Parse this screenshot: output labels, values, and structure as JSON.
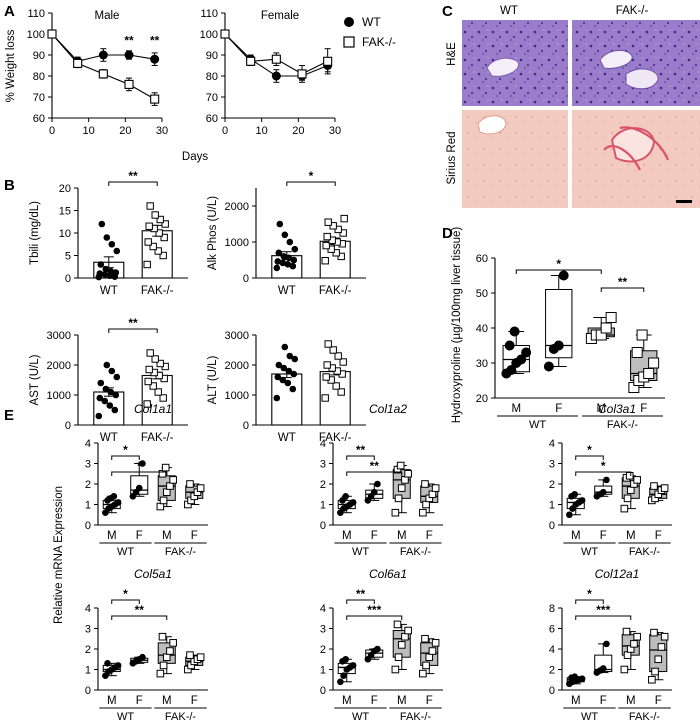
{
  "panels": [
    {
      "id": "A",
      "label": "A"
    },
    {
      "id": "B",
      "label": "B"
    },
    {
      "id": "C",
      "label": "C"
    },
    {
      "id": "D",
      "label": "D"
    },
    {
      "id": "E",
      "label": "E"
    }
  ],
  "colors": {
    "wt": "#000000",
    "fak": "#ffffff",
    "fak_box_E": "#bdbdbd",
    "he_bg": "#8d6fc0",
    "sirius_bg": "#f2c7bc"
  },
  "histology": {
    "col_labels": [
      "WT",
      "FAK-/-"
    ],
    "row_labels": [
      "H&E",
      "Sirius Red"
    ]
  },
  "chart_data": [
    {
      "panel": "A-male",
      "type": "line",
      "title": "Male",
      "x": [
        0,
        7,
        14,
        21,
        28
      ],
      "xlabel": "Days",
      "ylabel": "% Weight loss",
      "xlim": [
        0,
        30
      ],
      "ylim": [
        60,
        110
      ],
      "xticks": [
        0,
        10,
        20,
        30
      ],
      "yticks": [
        60,
        70,
        80,
        90,
        100,
        110
      ],
      "series": [
        {
          "name": "WT",
          "values": [
            100,
            87,
            90,
            90,
            88
          ],
          "err": [
            1,
            2,
            3,
            2,
            3
          ]
        },
        {
          "name": "FAK-/-",
          "values": [
            100,
            86,
            81,
            76,
            69
          ],
          "err": [
            1,
            2,
            2,
            3,
            3
          ]
        }
      ],
      "annotations": [
        {
          "x": 21,
          "y": 95,
          "text": "**"
        },
        {
          "x": 28,
          "y": 95,
          "text": "**"
        }
      ]
    },
    {
      "panel": "A-female",
      "type": "line",
      "title": "Female",
      "x": [
        0,
        7,
        14,
        21,
        28
      ],
      "xlabel": "Days",
      "ylabel": "",
      "xlim": [
        0,
        30
      ],
      "ylim": [
        60,
        110
      ],
      "xticks": [
        0,
        10,
        20,
        30
      ],
      "yticks": [
        60,
        70,
        80,
        90,
        100,
        110
      ],
      "series": [
        {
          "name": "WT",
          "values": [
            100,
            88,
            80,
            80,
            85
          ],
          "err": [
            1,
            2,
            3,
            2,
            3
          ]
        },
        {
          "name": "FAK-/-",
          "values": [
            100,
            87,
            88,
            81,
            87
          ],
          "err": [
            1,
            2,
            3,
            4,
            6
          ]
        }
      ]
    },
    {
      "panel": "B-tbili",
      "type": "bar",
      "ylabel": "Tbili (mg/dL)",
      "ylim": [
        0,
        20
      ],
      "yticks": [
        0,
        5,
        10,
        15,
        20
      ],
      "categories": [
        "WT",
        "FAK-/-"
      ],
      "values": [
        3.5,
        10.5
      ],
      "err": [
        1.2,
        1.2
      ],
      "points": [
        [
          0.2,
          0.3,
          0.5,
          0.8,
          1,
          1.2,
          1.5,
          2,
          3,
          6,
          7.5,
          9,
          12
        ],
        [
          3,
          5,
          6,
          7,
          8,
          9,
          10,
          11,
          11.5,
          12,
          13,
          14,
          16
        ]
      ],
      "sig": "**"
    },
    {
      "panel": "B-alkphos",
      "type": "bar",
      "ylabel": "Alk Phos (U/L)",
      "ylim": [
        0,
        2500
      ],
      "yticks": [
        0,
        1000,
        2000
      ],
      "categories": [
        "WT",
        "FAK-/-"
      ],
      "values": [
        620,
        1020
      ],
      "err": [
        110,
        90
      ],
      "points": [
        [
          280,
          330,
          380,
          420,
          460,
          500,
          560,
          600,
          700,
          800,
          1000,
          1200,
          1500
        ],
        [
          480,
          600,
          700,
          800,
          900,
          950,
          1000,
          1050,
          1150,
          1250,
          1350,
          1450,
          1550,
          1650
        ]
      ],
      "sig": "*"
    },
    {
      "panel": "B-ast",
      "type": "bar",
      "ylabel": "AST (U/L)",
      "ylim": [
        0,
        3000
      ],
      "yticks": [
        0,
        1000,
        2000,
        3000
      ],
      "categories": [
        "WT",
        "FAK-/-"
      ],
      "values": [
        1100,
        1650
      ],
      "err": [
        140,
        110
      ],
      "points": [
        [
          300,
          500,
          650,
          800,
          900,
          1000,
          1100,
          1200,
          1400,
          1600,
          1800,
          2000
        ],
        [
          700,
          900,
          1100,
          1300,
          1450,
          1550,
          1650,
          1750,
          1850,
          1950,
          2050,
          2200,
          2400
        ]
      ],
      "sig": "**"
    },
    {
      "panel": "B-alt",
      "type": "bar",
      "ylabel": "ALT (U/L)",
      "ylim": [
        0,
        3000
      ],
      "yticks": [
        0,
        1000,
        2000,
        3000
      ],
      "categories": [
        "WT",
        "FAK-/-"
      ],
      "values": [
        1700,
        1780
      ],
      "err": [
        120,
        110
      ],
      "points": [
        [
          900,
          1200,
          1400,
          1500,
          1600,
          1700,
          1800,
          1900,
          2000,
          2200,
          2300,
          2600
        ],
        [
          900,
          1100,
          1300,
          1500,
          1600,
          1700,
          1800,
          1900,
          2000,
          2100,
          2300,
          2500,
          2700
        ]
      ]
    },
    {
      "panel": "D",
      "type": "box",
      "ylabel": "Hydroxyproline (µg/100mg liver tissue)",
      "ylim": [
        20,
        60
      ],
      "yticks": [
        20,
        30,
        40,
        50,
        60
      ],
      "categories": [
        "M",
        "F",
        "M",
        "F"
      ],
      "groups": [
        "WT",
        "FAK-/-"
      ],
      "boxes": [
        {
          "min": 27,
          "q1": 27.5,
          "med": 31,
          "q3": 35,
          "max": 39,
          "points": [
            27,
            28,
            30,
            31,
            33,
            35,
            39
          ],
          "fill": "#ffffff",
          "marker": "circle"
        },
        {
          "min": 29,
          "q1": 31.5,
          "med": 35,
          "q3": 51,
          "max": 55,
          "points": [
            29,
            34,
            35,
            55
          ],
          "fill": "#ffffff",
          "marker": "circle"
        },
        {
          "min": 37,
          "q1": 37.5,
          "med": 38,
          "q3": 40,
          "max": 43,
          "points": [
            37,
            38,
            38,
            40,
            43
          ],
          "fill": "#bdbdbd",
          "marker": "square"
        },
        {
          "min": 23,
          "q1": 25,
          "med": 27,
          "q3": 33.5,
          "max": 38,
          "points": [
            23,
            25,
            26,
            27,
            30,
            33,
            38
          ],
          "fill": "#bdbdbd",
          "marker": "square"
        }
      ],
      "sigs": [
        {
          "from": 0,
          "to": 2,
          "text": "*"
        },
        {
          "from": 2,
          "to": 3,
          "text": "**"
        }
      ]
    },
    {
      "panel": "E-col1a1",
      "type": "box",
      "title": "Col1a1",
      "ylim": [
        0,
        4
      ],
      "yticks": [
        0,
        1,
        2,
        3,
        4
      ],
      "categories": [
        "M",
        "F",
        "M",
        "F"
      ],
      "groups": [
        "WT",
        "FAK-/-"
      ],
      "boxes": [
        {
          "min": 0.6,
          "q1": 0.8,
          "med": 1.0,
          "q3": 1.2,
          "max": 1.4,
          "points": [
            0.6,
            0.8,
            0.9,
            1.0,
            1.1,
            1.2,
            1.3,
            1.4
          ]
        },
        {
          "min": 1.4,
          "q1": 1.5,
          "med": 1.7,
          "q3": 2.4,
          "max": 3.0,
          "points": [
            1.4,
            1.6,
            1.8,
            3.0
          ]
        },
        {
          "min": 0.9,
          "q1": 1.2,
          "med": 1.9,
          "q3": 2.4,
          "max": 2.8,
          "points": [
            0.9,
            1.2,
            1.6,
            1.9,
            2.2,
            2.5,
            2.8
          ]
        },
        {
          "min": 1.0,
          "q1": 1.3,
          "med": 1.6,
          "q3": 1.9,
          "max": 2.0,
          "points": [
            1.0,
            1.2,
            1.4,
            1.6,
            1.8,
            2.0
          ]
        }
      ],
      "sigs": [
        {
          "from": 0,
          "to": 1,
          "text": "*"
        },
        {
          "from": 0,
          "to": 2,
          "text": "*"
        }
      ]
    },
    {
      "panel": "E-col1a2",
      "type": "box",
      "title": "Col1a2",
      "ylim": [
        0,
        4
      ],
      "yticks": [
        0,
        1,
        2,
        3,
        4
      ],
      "categories": [
        "M",
        "F",
        "M",
        "F"
      ],
      "groups": [
        "WT",
        "FAK-/-"
      ],
      "boxes": [
        {
          "min": 0.6,
          "q1": 0.8,
          "med": 1.0,
          "q3": 1.2,
          "max": 1.4,
          "points": [
            0.6,
            0.8,
            0.9,
            1.0,
            1.1,
            1.2,
            1.4
          ]
        },
        {
          "min": 1.2,
          "q1": 1.3,
          "med": 1.5,
          "q3": 1.7,
          "max": 2.0,
          "points": [
            1.2,
            1.4,
            1.6,
            2.0
          ]
        },
        {
          "min": 0.6,
          "q1": 1.3,
          "med": 2.2,
          "q3": 2.7,
          "max": 2.9,
          "points": [
            0.6,
            1.3,
            1.8,
            2.2,
            2.5,
            2.7,
            2.9
          ]
        },
        {
          "min": 0.6,
          "q1": 1.1,
          "med": 1.4,
          "q3": 1.9,
          "max": 2.0,
          "points": [
            0.6,
            1.0,
            1.3,
            1.5,
            1.8,
            2.0
          ]
        }
      ],
      "sigs": [
        {
          "from": 0,
          "to": 1,
          "text": "**"
        },
        {
          "from": 0,
          "to": 2,
          "text": "**"
        }
      ]
    },
    {
      "panel": "E-col3a1",
      "type": "box",
      "title": "Col3a1",
      "ylim": [
        0,
        4
      ],
      "yticks": [
        0,
        1,
        2,
        3,
        4
      ],
      "categories": [
        "M",
        "F",
        "M",
        "F"
      ],
      "groups": [
        "WT",
        "FAK-/-"
      ],
      "boxes": [
        {
          "min": 0.5,
          "q1": 0.8,
          "med": 1.1,
          "q3": 1.3,
          "max": 1.5,
          "points": [
            0.5,
            0.8,
            1.0,
            1.1,
            1.2,
            1.4,
            1.5
          ]
        },
        {
          "min": 1.4,
          "q1": 1.5,
          "med": 1.6,
          "q3": 1.9,
          "max": 2.2,
          "points": [
            1.4,
            1.5,
            1.6,
            2.2
          ]
        },
        {
          "min": 0.8,
          "q1": 1.3,
          "med": 1.9,
          "q3": 2.3,
          "max": 2.4,
          "points": [
            0.8,
            1.3,
            1.7,
            2.0,
            2.2,
            2.3,
            2.4
          ]
        },
        {
          "min": 1.2,
          "q1": 1.3,
          "med": 1.5,
          "q3": 1.8,
          "max": 1.9,
          "points": [
            1.2,
            1.3,
            1.5,
            1.7,
            1.8,
            1.9
          ]
        }
      ],
      "sigs": [
        {
          "from": 0,
          "to": 1,
          "text": "*"
        },
        {
          "from": 0,
          "to": 2,
          "text": "*"
        }
      ]
    },
    {
      "panel": "E-col5a1",
      "type": "box",
      "title": "Col5a1",
      "ylim": [
        0,
        4
      ],
      "yticks": [
        0,
        1,
        2,
        3,
        4
      ],
      "categories": [
        "M",
        "F",
        "M",
        "F"
      ],
      "groups": [
        "WT",
        "FAK-/-"
      ],
      "boxes": [
        {
          "min": 0.7,
          "q1": 0.9,
          "med": 1.0,
          "q3": 1.2,
          "max": 1.3,
          "points": [
            0.7,
            0.9,
            1.0,
            1.1,
            1.2,
            1.3
          ]
        },
        {
          "min": 1.3,
          "q1": 1.35,
          "med": 1.45,
          "q3": 1.55,
          "max": 1.6,
          "points": [
            1.3,
            1.4,
            1.5,
            1.6
          ]
        },
        {
          "min": 0.8,
          "q1": 1.3,
          "med": 1.7,
          "q3": 2.3,
          "max": 2.6,
          "points": [
            0.8,
            1.2,
            1.6,
            1.9,
            2.3,
            2.6
          ]
        },
        {
          "min": 1.0,
          "q1": 1.2,
          "med": 1.4,
          "q3": 1.6,
          "max": 1.7,
          "points": [
            1.0,
            1.2,
            1.4,
            1.5,
            1.6,
            1.7
          ]
        }
      ],
      "sigs": [
        {
          "from": 0,
          "to": 1,
          "text": "*"
        },
        {
          "from": 0,
          "to": 2,
          "text": "**"
        }
      ]
    },
    {
      "panel": "E-col6a1",
      "type": "box",
      "title": "Col6a1",
      "ylim": [
        0,
        4
      ],
      "yticks": [
        0,
        1,
        2,
        3,
        4
      ],
      "categories": [
        "M",
        "F",
        "M",
        "F"
      ],
      "groups": [
        "WT",
        "FAK-/-"
      ],
      "boxes": [
        {
          "min": 0.4,
          "q1": 0.8,
          "med": 1.1,
          "q3": 1.3,
          "max": 1.5,
          "points": [
            0.4,
            0.7,
            1.0,
            1.1,
            1.2,
            1.4,
            1.5
          ]
        },
        {
          "min": 1.5,
          "q1": 1.6,
          "med": 1.8,
          "q3": 1.95,
          "max": 2.0,
          "points": [
            1.5,
            1.7,
            1.9,
            2.0
          ]
        },
        {
          "min": 1.0,
          "q1": 1.6,
          "med": 2.5,
          "q3": 2.9,
          "max": 3.2,
          "points": [
            1.0,
            1.6,
            2.2,
            2.6,
            2.9,
            3.2
          ]
        },
        {
          "min": 0.8,
          "q1": 1.2,
          "med": 1.8,
          "q3": 2.3,
          "max": 2.5,
          "points": [
            0.8,
            1.2,
            1.6,
            1.9,
            2.3,
            2.5
          ]
        }
      ],
      "sigs": [
        {
          "from": 0,
          "to": 1,
          "text": "**"
        },
        {
          "from": 0,
          "to": 2,
          "text": "***"
        }
      ]
    },
    {
      "panel": "E-col12a1",
      "type": "box",
      "title": "Col12a1",
      "ylim": [
        0,
        8
      ],
      "yticks": [
        0,
        2,
        4,
        6,
        8
      ],
      "categories": [
        "M",
        "F",
        "M",
        "F"
      ],
      "groups": [
        "WT",
        "FAK-/-"
      ],
      "boxes": [
        {
          "min": 0.6,
          "q1": 0.8,
          "med": 1.0,
          "q3": 1.2,
          "max": 1.3,
          "points": [
            0.6,
            0.8,
            0.9,
            1.0,
            1.1,
            1.2,
            1.3
          ]
        },
        {
          "min": 1.7,
          "q1": 1.8,
          "med": 2.0,
          "q3": 3.4,
          "max": 4.5,
          "points": [
            1.7,
            1.9,
            2.1,
            4.5
          ]
        },
        {
          "min": 2.0,
          "q1": 3.4,
          "med": 4.3,
          "q3": 5.4,
          "max": 5.7,
          "points": [
            2.0,
            3.4,
            4.0,
            4.5,
            5.2,
            5.7
          ]
        },
        {
          "min": 1.0,
          "q1": 1.8,
          "med": 3.9,
          "q3": 5.4,
          "max": 5.6,
          "points": [
            1.0,
            1.8,
            3.0,
            4.2,
            5.2,
            5.6
          ]
        }
      ],
      "sigs": [
        {
          "from": 0,
          "to": 1,
          "text": "*"
        },
        {
          "from": 0,
          "to": 2,
          "text": "***"
        }
      ]
    }
  ],
  "E_ylabel": "Relative mRNA Expression"
}
